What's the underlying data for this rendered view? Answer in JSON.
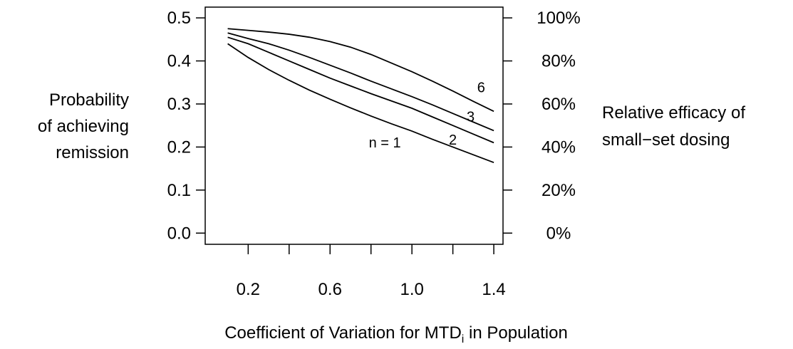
{
  "chart_data": {
    "type": "line",
    "ylabel": [
      "Probability",
      "of achieving",
      "remission"
    ],
    "y2label": [
      "Relative efficacy of",
      "small−set dosing"
    ],
    "xlabel": {
      "text": "Coefficient of Variation for MTD",
      "sub": "i",
      "after": " in Population"
    },
    "x": [
      0.1,
      0.2,
      0.3,
      0.4,
      0.5,
      0.6,
      0.7,
      0.8,
      0.9,
      1.0,
      1.1,
      1.2,
      1.3,
      1.4
    ],
    "series": [
      {
        "name": "n = 1",
        "color": "#000000",
        "values": [
          0.44,
          0.408,
          0.38,
          0.355,
          0.332,
          0.311,
          0.291,
          0.272,
          0.254,
          0.237,
          0.218,
          0.2,
          0.182,
          0.164
        ]
      },
      {
        "name": "2",
        "color": "#000000",
        "values": [
          0.455,
          0.44,
          0.42,
          0.4,
          0.38,
          0.36,
          0.342,
          0.324,
          0.307,
          0.29,
          0.27,
          0.25,
          0.23,
          0.21
        ]
      },
      {
        "name": "3",
        "color": "#000000",
        "values": [
          0.465,
          0.452,
          0.44,
          0.425,
          0.408,
          0.39,
          0.372,
          0.353,
          0.335,
          0.317,
          0.298,
          0.278,
          0.258,
          0.238
        ]
      },
      {
        "name": "6",
        "color": "#000000",
        "values": [
          0.475,
          0.471,
          0.467,
          0.462,
          0.455,
          0.445,
          0.432,
          0.415,
          0.395,
          0.375,
          0.353,
          0.33,
          0.306,
          0.283
        ]
      }
    ],
    "xlim": [
      -0.01,
      1.445
    ],
    "xticks": [
      {
        "value": 0.2,
        "label": "0.2"
      },
      {
        "value": 0.4,
        "label": null
      },
      {
        "value": 0.6,
        "label": "0.6"
      },
      {
        "value": 0.8,
        "label": null
      },
      {
        "value": 1.0,
        "label": "1.0"
      },
      {
        "value": 1.2,
        "label": null
      },
      {
        "value": 1.4,
        "label": "1.4"
      }
    ],
    "ylim": [
      -0.026,
      0.525
    ],
    "yticks": [
      {
        "value": 0.0,
        "label": "0.0"
      },
      0.1,
      0.2,
      0.3,
      0.4,
      0.5
    ],
    "y2lim": [
      -5.2,
      105
    ],
    "y2ticks": [
      {
        "value": 0,
        "label": "0%"
      },
      {
        "value": 20,
        "label": "20%"
      },
      {
        "value": 40,
        "label": "40%"
      },
      {
        "value": 60,
        "label": "60%"
      },
      {
        "value": 80,
        "label": "80%"
      },
      {
        "value": 100,
        "label": "100%"
      }
    ]
  }
}
